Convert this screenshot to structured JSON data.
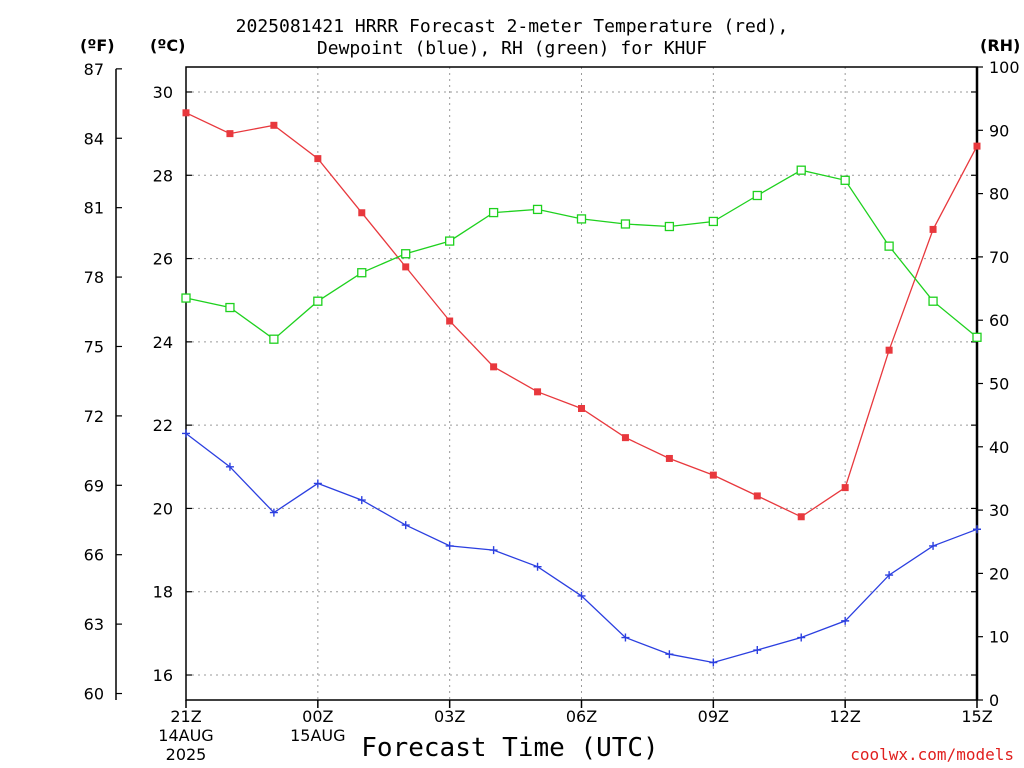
{
  "title_line1": "2025081421 HRRR Forecast 2-meter Temperature (red),",
  "title_line2": "Dewpoint (blue), RH (green) for KHUF",
  "units": {
    "fahrenheit": "(ºF)",
    "celsius": "(ºC)",
    "rh": "(RH)"
  },
  "xaxis_title": "Forecast Time (UTC)",
  "credit": "coolwx.com/models",
  "chart_data": {
    "type": "line",
    "title": "2025081421 HRRR Forecast 2-meter Temperature (red), Dewpoint (blue), RH (green) for KHUF",
    "xlabel": "Forecast Time (UTC)",
    "x_hours": [
      0,
      1,
      2,
      3,
      4,
      5,
      6,
      7,
      8,
      9,
      10,
      11,
      12,
      13,
      14,
      15,
      16,
      17,
      18
    ],
    "x_ticks": [
      {
        "hour": 0,
        "label": "21Z",
        "sub1": "14AUG",
        "sub2": "2025"
      },
      {
        "hour": 3,
        "label": "00Z",
        "sub1": "15AUG",
        "sub2": ""
      },
      {
        "hour": 6,
        "label": "03Z",
        "sub1": "",
        "sub2": ""
      },
      {
        "hour": 9,
        "label": "06Z",
        "sub1": "",
        "sub2": ""
      },
      {
        "hour": 12,
        "label": "09Z",
        "sub1": "",
        "sub2": ""
      },
      {
        "hour": 15,
        "label": "12Z",
        "sub1": "",
        "sub2": ""
      },
      {
        "hour": 18,
        "label": "15Z",
        "sub1": "",
        "sub2": ""
      }
    ],
    "xlim": [
      0,
      18
    ],
    "ylim_c": [
      15.4,
      30.6
    ],
    "ylim_rh": [
      0,
      100
    ],
    "y_ticks_c": [
      16,
      18,
      20,
      22,
      24,
      26,
      28,
      30
    ],
    "y_ticks_f": [
      60,
      63,
      66,
      69,
      72,
      75,
      78,
      81,
      84,
      87
    ],
    "y_ticks_rh": [
      0,
      10,
      20,
      30,
      40,
      50,
      60,
      70,
      80,
      90,
      100
    ],
    "grid": true,
    "series": [
      {
        "name": "Temperature",
        "color": "#e8383d",
        "marker": "filled-square",
        "axis": "celsius",
        "values": [
          29.5,
          29.0,
          29.2,
          28.4,
          27.1,
          25.8,
          24.5,
          23.4,
          22.8,
          22.4,
          21.7,
          21.2,
          20.8,
          20.3,
          19.8,
          20.5,
          23.8,
          26.7,
          28.7
        ]
      },
      {
        "name": "Dewpoint",
        "color": "#2b3fe0",
        "marker": "plus",
        "axis": "celsius",
        "values": [
          21.8,
          21.0,
          19.9,
          20.6,
          20.2,
          19.6,
          19.1,
          19.0,
          18.6,
          17.9,
          16.9,
          16.5,
          16.3,
          16.6,
          16.9,
          17.3,
          18.4,
          19.1,
          19.5
        ]
      },
      {
        "name": "RH",
        "color": "#1ed11e",
        "marker": "open-square",
        "axis": "rh",
        "values": [
          63.5,
          62.0,
          57.0,
          63.0,
          67.5,
          70.5,
          72.5,
          77.0,
          77.5,
          76.0,
          75.2,
          74.8,
          75.6,
          79.7,
          83.7,
          82.1,
          71.7,
          63.0,
          57.3
        ]
      }
    ]
  }
}
